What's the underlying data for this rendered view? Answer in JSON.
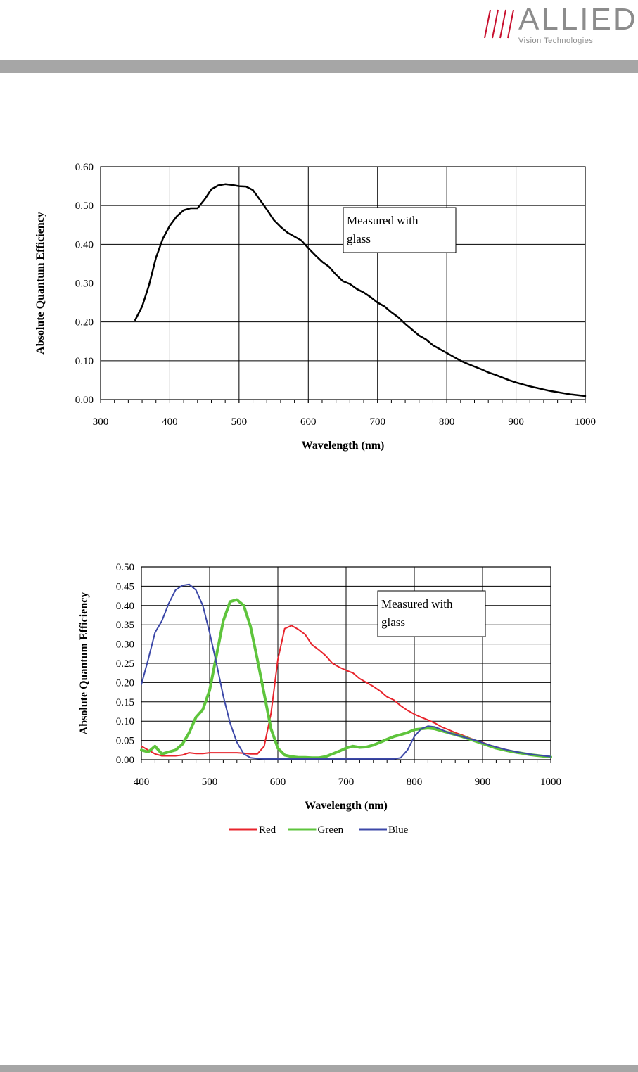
{
  "header": {
    "logo_word": "ALLIED",
    "logo_subtitle": "Vision Technologies",
    "accent_color": "#c8102e",
    "logo_text_color": "#8c8c8c",
    "bar_color": "#a6a6a6"
  },
  "chart_data": [
    {
      "type": "line",
      "xlabel": "Wavelength (nm)",
      "ylabel": "Absolute Quantum Efficiency",
      "xlim": [
        300,
        1000
      ],
      "ylim": [
        0,
        0.6
      ],
      "xticks": [
        "300",
        "400",
        "500",
        "600",
        "700",
        "800",
        "900",
        "1000"
      ],
      "yticks": [
        "0.00",
        "0.10",
        "0.20",
        "0.30",
        "0.40",
        "0.50",
        "0.60"
      ],
      "grid": true,
      "annotation": [
        "Measured with",
        "glass"
      ],
      "series": [
        {
          "color": "#000000",
          "x": [
            350,
            360,
            370,
            380,
            390,
            400,
            410,
            420,
            430,
            440,
            450,
            460,
            470,
            480,
            490,
            500,
            510,
            520,
            530,
            540,
            550,
            560,
            570,
            580,
            590,
            600,
            610,
            620,
            630,
            640,
            650,
            660,
            670,
            680,
            690,
            700,
            710,
            720,
            730,
            740,
            750,
            760,
            770,
            780,
            790,
            800,
            810,
            820,
            830,
            840,
            850,
            860,
            870,
            880,
            890,
            900,
            910,
            920,
            930,
            940,
            950,
            960,
            970,
            980,
            990,
            1000
          ],
          "values": [
            0.205,
            0.24,
            0.295,
            0.365,
            0.415,
            0.448,
            0.472,
            0.488,
            0.493,
            0.493,
            0.515,
            0.542,
            0.552,
            0.555,
            0.553,
            0.55,
            0.549,
            0.54,
            0.515,
            0.49,
            0.463,
            0.445,
            0.43,
            0.42,
            0.41,
            0.39,
            0.372,
            0.355,
            0.342,
            0.322,
            0.305,
            0.298,
            0.285,
            0.276,
            0.264,
            0.25,
            0.24,
            0.225,
            0.212,
            0.195,
            0.18,
            0.165,
            0.155,
            0.14,
            0.13,
            0.12,
            0.11,
            0.1,
            0.092,
            0.085,
            0.078,
            0.07,
            0.064,
            0.057,
            0.05,
            0.044,
            0.039,
            0.034,
            0.03,
            0.026,
            0.022,
            0.019,
            0.016,
            0.013,
            0.011,
            0.009
          ]
        }
      ]
    },
    {
      "type": "line",
      "xlabel": "Wavelength (nm)",
      "ylabel": "Absolute Quantum Efficiency",
      "xlim": [
        400,
        1000
      ],
      "ylim": [
        0,
        0.5
      ],
      "xticks": [
        "400",
        "500",
        "600",
        "700",
        "800",
        "900",
        "1000"
      ],
      "yticks": [
        "0.00",
        "0.05",
        "0.10",
        "0.15",
        "0.20",
        "0.25",
        "0.30",
        "0.35",
        "0.40",
        "0.45",
        "0.50"
      ],
      "grid": true,
      "annotation": [
        "Measured with",
        "glass"
      ],
      "legend_position": "bottom",
      "x": [
        400,
        410,
        420,
        430,
        440,
        450,
        460,
        470,
        480,
        490,
        500,
        510,
        520,
        530,
        540,
        550,
        560,
        570,
        580,
        590,
        600,
        610,
        620,
        630,
        640,
        650,
        660,
        670,
        680,
        690,
        700,
        710,
        720,
        730,
        740,
        750,
        760,
        770,
        780,
        790,
        800,
        810,
        820,
        830,
        840,
        850,
        860,
        870,
        880,
        890,
        900,
        910,
        920,
        930,
        940,
        950,
        960,
        970,
        980,
        990,
        1000
      ],
      "series": [
        {
          "name": "Red",
          "color": "#e8242c",
          "width": 2,
          "values": [
            0.035,
            0.025,
            0.015,
            0.01,
            0.01,
            0.01,
            0.012,
            0.018,
            0.016,
            0.016,
            0.018,
            0.018,
            0.018,
            0.018,
            0.018,
            0.017,
            0.015,
            0.015,
            0.035,
            0.12,
            0.26,
            0.34,
            0.348,
            0.338,
            0.325,
            0.298,
            0.285,
            0.27,
            0.25,
            0.24,
            0.232,
            0.225,
            0.21,
            0.2,
            0.19,
            0.178,
            0.163,
            0.155,
            0.14,
            0.128,
            0.118,
            0.11,
            0.103,
            0.095,
            0.085,
            0.078,
            0.07,
            0.064,
            0.057,
            0.05,
            0.045,
            0.038,
            0.033,
            0.028,
            0.024,
            0.02,
            0.017,
            0.014,
            0.012,
            0.01,
            0.008
          ]
        },
        {
          "name": "Green",
          "color": "#5ec43c",
          "width": 4,
          "values": [
            0.025,
            0.02,
            0.035,
            0.015,
            0.02,
            0.025,
            0.04,
            0.07,
            0.11,
            0.13,
            0.18,
            0.27,
            0.36,
            0.41,
            0.415,
            0.4,
            0.345,
            0.26,
            0.17,
            0.08,
            0.03,
            0.012,
            0.008,
            0.006,
            0.006,
            0.005,
            0.005,
            0.008,
            0.015,
            0.022,
            0.03,
            0.035,
            0.032,
            0.033,
            0.038,
            0.045,
            0.053,
            0.06,
            0.065,
            0.07,
            0.078,
            0.08,
            0.082,
            0.08,
            0.075,
            0.07,
            0.065,
            0.06,
            0.054,
            0.048,
            0.042,
            0.036,
            0.03,
            0.026,
            0.022,
            0.019,
            0.016,
            0.013,
            0.011,
            0.009,
            0.007
          ]
        },
        {
          "name": "Blue",
          "color": "#3c48a8",
          "width": 2,
          "values": [
            0.195,
            0.26,
            0.33,
            0.36,
            0.405,
            0.44,
            0.452,
            0.455,
            0.44,
            0.4,
            0.33,
            0.25,
            0.165,
            0.095,
            0.045,
            0.015,
            0.005,
            0.003,
            0.002,
            0.002,
            0.002,
            0.002,
            0.002,
            0.002,
            0.002,
            0.002,
            0.002,
            0.002,
            0.002,
            0.002,
            0.002,
            0.002,
            0.002,
            0.002,
            0.002,
            0.002,
            0.002,
            0.002,
            0.005,
            0.025,
            0.06,
            0.08,
            0.087,
            0.085,
            0.078,
            0.07,
            0.065,
            0.06,
            0.055,
            0.05,
            0.044,
            0.038,
            0.033,
            0.028,
            0.024,
            0.02,
            0.017,
            0.014,
            0.012,
            0.01,
            0.008
          ]
        }
      ]
    }
  ]
}
